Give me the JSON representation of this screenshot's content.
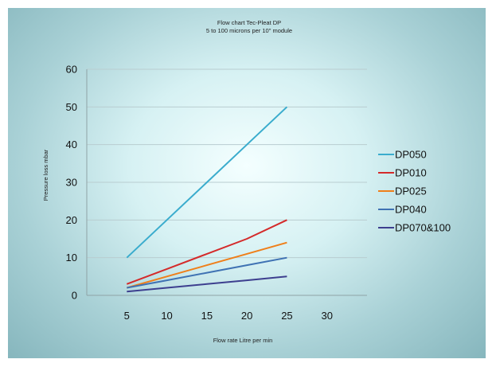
{
  "chart_data": {
    "type": "line",
    "title": "Flow chart Tec-Pleat DP",
    "subtitle": "5 to 100 microns per 10\" module",
    "xlabel": "Flow rate Litre per min",
    "ylabel": "Pressure loss mbar",
    "xlim": [
      0,
      35
    ],
    "ylim": [
      0,
      60
    ],
    "x_ticks": [
      5,
      10,
      15,
      20,
      25,
      30
    ],
    "y_ticks": [
      0,
      10,
      20,
      30,
      40,
      50,
      60
    ],
    "grid": "horizontal",
    "legend_position": "right",
    "series": [
      {
        "name": "DP050",
        "color": "#3aaccd",
        "x": [
          5,
          10,
          15,
          20,
          25
        ],
        "y": [
          10,
          20,
          30,
          40,
          50
        ]
      },
      {
        "name": "DP010",
        "color": "#d42a2a",
        "x": [
          5,
          10,
          15,
          20,
          25
        ],
        "y": [
          3,
          7,
          11,
          15,
          20
        ]
      },
      {
        "name": "DP025",
        "color": "#ef7f1a",
        "x": [
          5,
          10,
          15,
          20,
          25
        ],
        "y": [
          2,
          5,
          8,
          11,
          14
        ]
      },
      {
        "name": "DP040",
        "color": "#3f72b3",
        "x": [
          5,
          10,
          15,
          20,
          25
        ],
        "y": [
          2,
          4,
          6,
          8,
          10
        ]
      },
      {
        "name": "DP070&100",
        "color": "#3d3f8f",
        "x": [
          5,
          10,
          15,
          20,
          25
        ],
        "y": [
          1,
          2,
          3,
          4,
          5
        ]
      }
    ]
  }
}
